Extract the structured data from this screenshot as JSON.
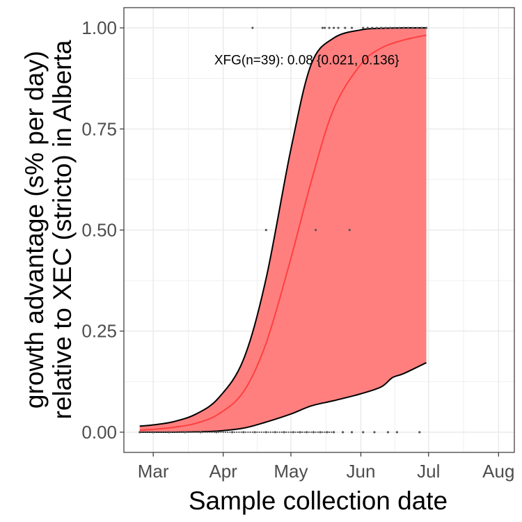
{
  "chart_data": {
    "type": "line",
    "title": "",
    "xlabel": "Sample collection date",
    "ylabel_lines": [
      "growth advantage (s% per day)",
      "relative to XEC (stricto) in Alberta"
    ],
    "xlim": [
      "2025-02-16",
      "2025-08-08"
    ],
    "ylim": [
      -0.05,
      1.05
    ],
    "x_ticks": [
      {
        "date": "2025-03-01",
        "label": "Mar"
      },
      {
        "date": "2025-04-01",
        "label": "Apr"
      },
      {
        "date": "2025-05-01",
        "label": "May"
      },
      {
        "date": "2025-06-01",
        "label": "Jun"
      },
      {
        "date": "2025-07-01",
        "label": "Jul"
      },
      {
        "date": "2025-08-01",
        "label": "Aug"
      }
    ],
    "y_ticks": [
      {
        "value": 0,
        "label": "0.00"
      },
      {
        "value": 0.25,
        "label": "0.25"
      },
      {
        "value": 0.5,
        "label": "0.50"
      },
      {
        "value": 0.75,
        "label": "0.75"
      },
      {
        "value": 1,
        "label": "1.00"
      }
    ],
    "grid": true,
    "annotation": {
      "text": "XFG(n=39): 0.08 {0.021, 0.136}",
      "date": "2025-05-08",
      "y": 0.91
    },
    "colors": {
      "fill": "#ff7f7f",
      "fit_line": "#ff4040",
      "ci_line": "#000000",
      "points": "#555555",
      "grid": "#ebebeb",
      "panel_border": "#333333"
    },
    "series": [
      {
        "name": "fit",
        "x": [
          "2025-02-23",
          "2025-03-01",
          "2025-03-10",
          "2025-03-20",
          "2025-03-30",
          "2025-04-10",
          "2025-04-20",
          "2025-05-01",
          "2025-05-10",
          "2025-05-20",
          "2025-06-01",
          "2025-06-10",
          "2025-06-20",
          "2025-06-30"
        ],
        "y": [
          0.005,
          0.007,
          0.012,
          0.022,
          0.045,
          0.1,
          0.22,
          0.43,
          0.62,
          0.8,
          0.91,
          0.95,
          0.97,
          0.982
        ]
      },
      {
        "name": "upper",
        "x": [
          "2025-02-23",
          "2025-03-01",
          "2025-03-10",
          "2025-03-20",
          "2025-03-30",
          "2025-04-10",
          "2025-04-20",
          "2025-05-01",
          "2025-05-10",
          "2025-05-20",
          "2025-06-01",
          "2025-06-10",
          "2025-06-20",
          "2025-06-30"
        ],
        "y": [
          0.015,
          0.018,
          0.026,
          0.045,
          0.085,
          0.18,
          0.38,
          0.7,
          0.91,
          0.975,
          0.995,
          0.999,
          1.0,
          1.0
        ]
      },
      {
        "name": "lower",
        "x": [
          "2025-02-23",
          "2025-03-01",
          "2025-03-10",
          "2025-03-20",
          "2025-03-30",
          "2025-04-10",
          "2025-04-20",
          "2025-05-01",
          "2025-05-10",
          "2025-05-20",
          "2025-06-01",
          "2025-06-10",
          "2025-06-15",
          "2025-06-20",
          "2025-06-30"
        ],
        "y": [
          0.0,
          0.0,
          0.0,
          0.001,
          0.003,
          0.01,
          0.025,
          0.045,
          0.065,
          0.078,
          0.095,
          0.112,
          0.135,
          0.145,
          0.172
        ]
      }
    ],
    "points": {
      "x": [
        "2025-04-14",
        "2025-04-20",
        "2025-05-12",
        "2025-05-27",
        "2025-05-15",
        "2025-05-16",
        "2025-05-18",
        "2025-05-20",
        "2025-05-22",
        "2025-05-25",
        "2025-05-28",
        "2025-06-02",
        "2025-06-04",
        "2025-06-06",
        "2025-06-08",
        "2025-06-10",
        "2025-06-12",
        "2025-06-14",
        "2025-06-16",
        "2025-06-18",
        "2025-06-20",
        "2025-06-22",
        "2025-06-24",
        "2025-06-26",
        "2025-06-28",
        "2025-06-30",
        "2025-02-23",
        "2025-03-01",
        "2025-03-08",
        "2025-03-15",
        "2025-03-22",
        "2025-03-29",
        "2025-04-05",
        "2025-04-10",
        "2025-04-15",
        "2025-04-20",
        "2025-04-24",
        "2025-04-28",
        "2025-05-02",
        "2025-05-05",
        "2025-05-08",
        "2025-05-11",
        "2025-05-14",
        "2025-05-17",
        "2025-05-20",
        "2025-05-24",
        "2025-05-28",
        "2025-06-02",
        "2025-06-07",
        "2025-06-13",
        "2025-06-17",
        "2025-06-27"
      ],
      "y": [
        1,
        0.5,
        0.5,
        0.5,
        1,
        1,
        1,
        1,
        1,
        1,
        1,
        1,
        1,
        1,
        1,
        1,
        1,
        1,
        1,
        1,
        1,
        1,
        1,
        1,
        1,
        1,
        0,
        0,
        0,
        0,
        0,
        0,
        0,
        0,
        0,
        0,
        0,
        0,
        0,
        0,
        0,
        0,
        0,
        0,
        0,
        0,
        0,
        0,
        0,
        0,
        0,
        0
      ]
    }
  }
}
